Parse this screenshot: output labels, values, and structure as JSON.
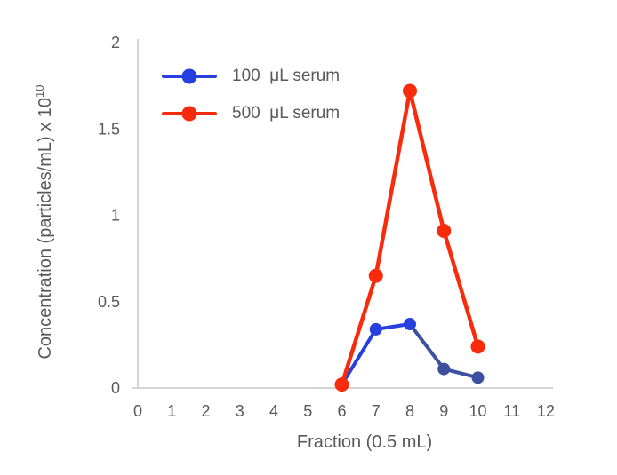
{
  "chart_data": {
    "type": "line",
    "title": "",
    "xlabel": "Fraction (0.5 mL)",
    "ylabel_main": "Concentration (particles/mL) x 10",
    "ylabel_exponent": "10",
    "xlim": [
      0,
      12
    ],
    "ylim": [
      0,
      2
    ],
    "x_ticks": [
      0,
      1,
      2,
      3,
      4,
      5,
      6,
      7,
      8,
      9,
      10,
      11,
      12
    ],
    "y_ticks": [
      0,
      0.5,
      1,
      1.5,
      2
    ],
    "y_tick_labels": [
      "0",
      "0.5",
      "1",
      "1.5",
      "2"
    ],
    "grid": false,
    "legend_position": "inside-top-left",
    "x": [
      6,
      7,
      8,
      9,
      10
    ],
    "series": [
      {
        "name": "100  μL serum",
        "values": [
          0.02,
          0.34,
          0.37,
          0.11,
          0.06
        ],
        "color": "#2640DF",
        "point_colors": [
          "#2640DF",
          "#2640DF",
          "#2640DF",
          "#3D4F9F",
          "#3D4F9F"
        ],
        "segment_colors": [
          "#2640DF",
          "#2640DF",
          "#3D4F9F",
          "#3D4F9F"
        ],
        "marker_radius": 7,
        "line_width": 4
      },
      {
        "name": "500  μL serum",
        "values": [
          0.02,
          0.65,
          1.72,
          0.91,
          0.24
        ],
        "color": "#F92B0D",
        "point_colors": [
          "#F92B0D",
          "#F92B0D",
          "#F92B0D",
          "#F92B0D",
          "#F92B0D"
        ],
        "segment_colors": [
          "#F92B0D",
          "#F92B0D",
          "#F92B0D",
          "#F92B0D"
        ],
        "marker_radius": 8,
        "line_width": 4.5
      }
    ],
    "axis_color": "#D4D4D4",
    "text_color": "#595959"
  }
}
